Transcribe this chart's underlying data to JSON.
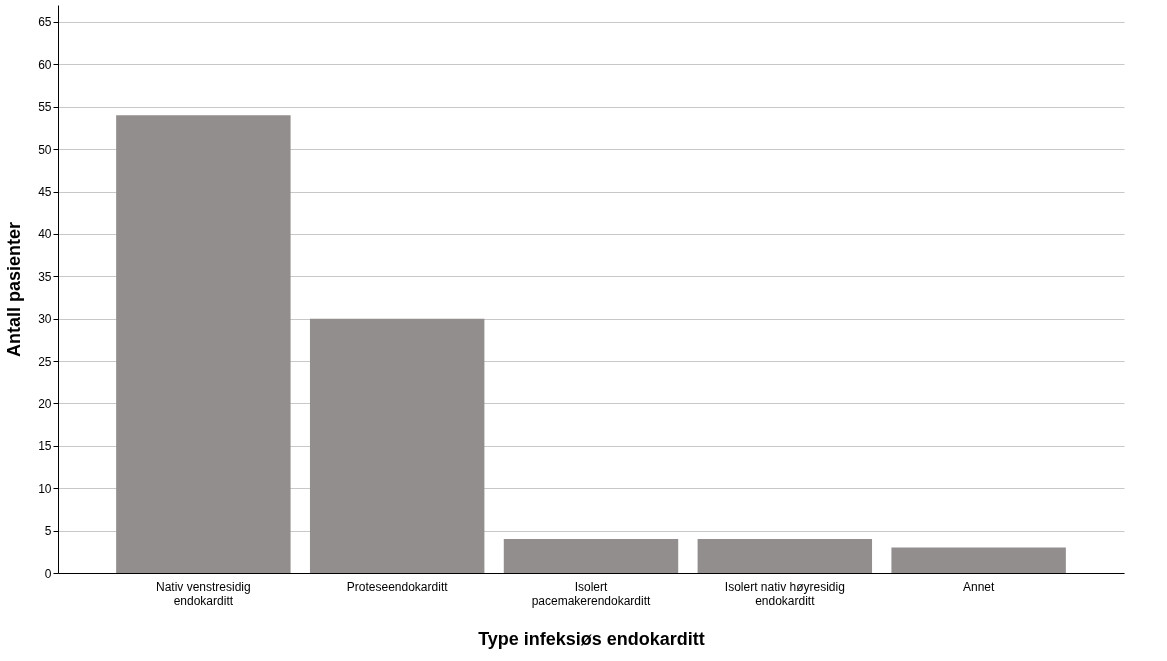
{
  "chart_data": {
    "type": "bar",
    "xlabel": "Type infeksiøs endokarditt",
    "ylabel": "Antall pasienter",
    "categories": [
      "Nativ venstresidig endokarditt",
      "Proteseendokarditt",
      "Isolert pacemakerendokarditt",
      "Isolert nativ høyresidig endokarditt",
      "Annet"
    ],
    "values": [
      54,
      30,
      4,
      4,
      3
    ],
    "color": "#928e8d",
    "ylim": [
      0,
      67
    ],
    "yticks": [
      0,
      5,
      10,
      15,
      20,
      25,
      30,
      35,
      40,
      45,
      50,
      55,
      60,
      65
    ],
    "grid": "y"
  }
}
